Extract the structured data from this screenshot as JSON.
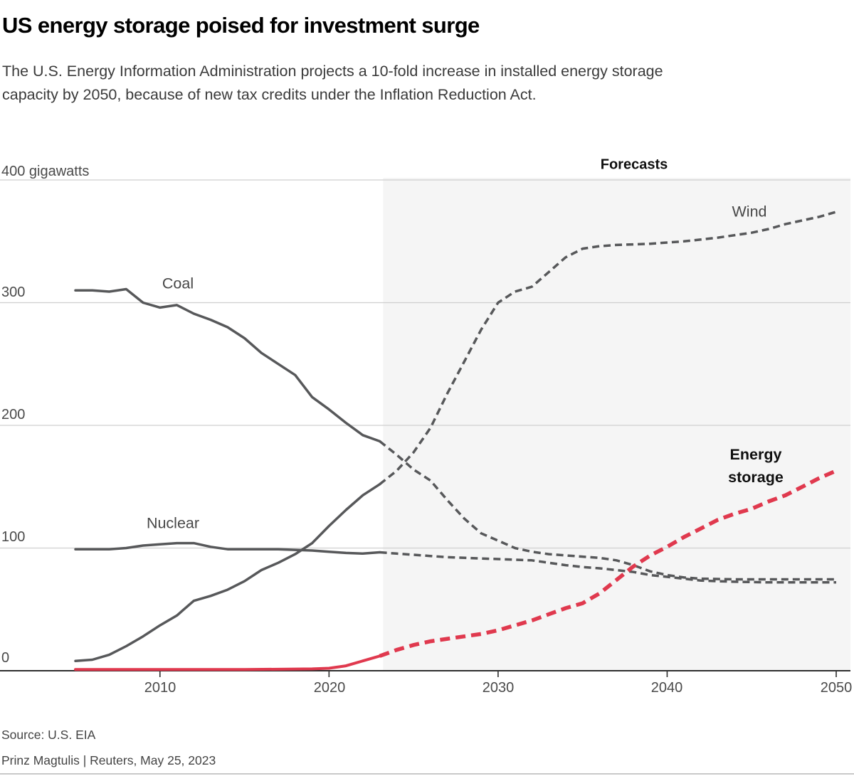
{
  "header": {
    "title": "US energy storage poised for investment surge",
    "subtitle": "The U.S. Energy Information Administration projects a 10-fold increase in installed energy storage\ncapacity by 2050, because of new tax credits under the Inflation Reduction Act."
  },
  "axis": {
    "unit_top": "400 gigawatts",
    "y": [
      "300",
      "200",
      "100",
      "0"
    ],
    "x": [
      "2010",
      "2020",
      "2030",
      "2040",
      "2050"
    ]
  },
  "annotations": {
    "forecasts": "Forecasts",
    "coal": "Coal",
    "nuclear": "Nuclear",
    "wind": "Wind",
    "storage": "Energy\nstorage"
  },
  "footer": {
    "source": "Source: U.S. EIA",
    "byline": "Prinz Magtulis |  Reuters, May 25, 2023"
  },
  "colors": {
    "gray_line": "#57585a",
    "red_line": "#e0394e",
    "gridline": "#cfcfcf",
    "axis": "#2e2e2e",
    "forecast_region": "#f5f5f5"
  },
  "chart_data": {
    "type": "line",
    "title": "US energy storage poised for investment surge",
    "ylabel": "gigawatts",
    "ylim": [
      0,
      400
    ],
    "xlim": [
      2005,
      2050
    ],
    "yticks": [
      0,
      100,
      200,
      300,
      400
    ],
    "xticks": [
      2010,
      2020,
      2030,
      2040,
      2050
    ],
    "grid": "horizontal",
    "legend_position": "inline-annotations",
    "forecast_region": {
      "label": "Forecasts",
      "x_start": 2023.2,
      "x_end": 2050.8
    },
    "series": [
      {
        "name": "Coal",
        "segment": "historical",
        "dashed": false,
        "color": "#57585a",
        "width": 3.5,
        "points": [
          [
            2005,
            310
          ],
          [
            2006,
            310
          ],
          [
            2007,
            309
          ],
          [
            2008,
            311
          ],
          [
            2009,
            300
          ],
          [
            2010,
            296
          ],
          [
            2011,
            298
          ],
          [
            2012,
            291
          ],
          [
            2013,
            286
          ],
          [
            2014,
            280
          ],
          [
            2015,
            271
          ],
          [
            2016,
            259
          ],
          [
            2017,
            250
          ],
          [
            2018,
            241
          ],
          [
            2019,
            223
          ],
          [
            2020,
            213
          ],
          [
            2021,
            202
          ],
          [
            2022,
            192
          ],
          [
            2023,
            187
          ]
        ]
      },
      {
        "name": "Coal",
        "segment": "forecast",
        "dashed": true,
        "color": "#57585a",
        "width": 3.5,
        "points": [
          [
            2023,
            187
          ],
          [
            2024,
            176
          ],
          [
            2025,
            164
          ],
          [
            2026,
            155
          ],
          [
            2027,
            139
          ],
          [
            2028,
            124
          ],
          [
            2029,
            112
          ],
          [
            2030,
            106
          ],
          [
            2031,
            100
          ],
          [
            2032,
            97
          ],
          [
            2033,
            95
          ],
          [
            2034,
            94
          ],
          [
            2035,
            93
          ],
          [
            2036,
            92
          ],
          [
            2037,
            90
          ],
          [
            2038,
            86
          ],
          [
            2039,
            81
          ],
          [
            2040,
            78
          ],
          [
            2041,
            76
          ],
          [
            2042,
            75
          ],
          [
            2044,
            74.5
          ],
          [
            2046,
            74.5
          ],
          [
            2048,
            74.5
          ],
          [
            2050,
            74.5
          ]
        ]
      },
      {
        "name": "Nuclear",
        "segment": "historical",
        "dashed": false,
        "color": "#57585a",
        "width": 3.5,
        "points": [
          [
            2005,
            99
          ],
          [
            2006,
            99
          ],
          [
            2007,
            99
          ],
          [
            2008,
            100
          ],
          [
            2009,
            102
          ],
          [
            2010,
            103
          ],
          [
            2011,
            104
          ],
          [
            2012,
            104
          ],
          [
            2013,
            101
          ],
          [
            2014,
            99
          ],
          [
            2015,
            99
          ],
          [
            2016,
            99
          ],
          [
            2017,
            99
          ],
          [
            2018,
            98.5
          ],
          [
            2019,
            98
          ],
          [
            2020,
            97
          ],
          [
            2021,
            96
          ],
          [
            2022,
            95.5
          ],
          [
            2023,
            96.5
          ]
        ]
      },
      {
        "name": "Nuclear",
        "segment": "forecast",
        "dashed": true,
        "color": "#57585a",
        "width": 3.5,
        "points": [
          [
            2023,
            96.5
          ],
          [
            2024,
            95.5
          ],
          [
            2025,
            94.5
          ],
          [
            2026,
            93.5
          ],
          [
            2027,
            92.5
          ],
          [
            2028,
            92
          ],
          [
            2029,
            91.5
          ],
          [
            2030,
            91
          ],
          [
            2031,
            90.5
          ],
          [
            2032,
            90
          ],
          [
            2033,
            88
          ],
          [
            2034,
            86
          ],
          [
            2035,
            84.5
          ],
          [
            2036,
            83.5
          ],
          [
            2037,
            82
          ],
          [
            2038,
            80.5
          ],
          [
            2039,
            78
          ],
          [
            2040,
            76.5
          ],
          [
            2041,
            75
          ],
          [
            2042,
            73.5
          ],
          [
            2043,
            73
          ],
          [
            2044,
            72.5
          ],
          [
            2046,
            72
          ],
          [
            2048,
            72
          ],
          [
            2050,
            72
          ]
        ]
      },
      {
        "name": "Wind",
        "segment": "historical",
        "dashed": false,
        "color": "#57585a",
        "width": 3.5,
        "points": [
          [
            2005,
            8
          ],
          [
            2006,
            9
          ],
          [
            2007,
            13
          ],
          [
            2008,
            20
          ],
          [
            2009,
            28
          ],
          [
            2010,
            37
          ],
          [
            2011,
            45
          ],
          [
            2012,
            57
          ],
          [
            2013,
            61
          ],
          [
            2014,
            66
          ],
          [
            2015,
            73
          ],
          [
            2016,
            82
          ],
          [
            2017,
            88
          ],
          [
            2018,
            95
          ],
          [
            2019,
            104
          ],
          [
            2020,
            118
          ],
          [
            2021,
            131
          ],
          [
            2022,
            143
          ],
          [
            2023,
            152
          ]
        ]
      },
      {
        "name": "Wind",
        "segment": "forecast",
        "dashed": true,
        "color": "#57585a",
        "width": 3.5,
        "points": [
          [
            2023,
            152
          ],
          [
            2024,
            163
          ],
          [
            2025,
            178
          ],
          [
            2026,
            198
          ],
          [
            2027,
            226
          ],
          [
            2028,
            252
          ],
          [
            2029,
            278
          ],
          [
            2030,
            300
          ],
          [
            2031,
            309
          ],
          [
            2032,
            313
          ],
          [
            2033,
            325
          ],
          [
            2034,
            337
          ],
          [
            2035,
            344
          ],
          [
            2036,
            346
          ],
          [
            2037,
            347
          ],
          [
            2038,
            347.5
          ],
          [
            2039,
            348
          ],
          [
            2040,
            349
          ],
          [
            2041,
            350
          ],
          [
            2042,
            351.5
          ],
          [
            2043,
            353
          ],
          [
            2044,
            355
          ],
          [
            2045,
            357
          ],
          [
            2046,
            360
          ],
          [
            2047,
            364
          ],
          [
            2048,
            367
          ],
          [
            2049,
            370
          ],
          [
            2050,
            374
          ]
        ]
      },
      {
        "name": "Energy storage",
        "segment": "historical",
        "dashed": false,
        "color": "#e0394e",
        "width": 4,
        "points": [
          [
            2005,
            1
          ],
          [
            2010,
            1
          ],
          [
            2015,
            1
          ],
          [
            2019,
            1.5
          ],
          [
            2020,
            2
          ],
          [
            2021,
            4
          ],
          [
            2022,
            8
          ],
          [
            2023,
            12
          ]
        ]
      },
      {
        "name": "Energy storage",
        "segment": "forecast",
        "dashed": true,
        "color": "#e0394e",
        "width": 5.5,
        "points": [
          [
            2023,
            12
          ],
          [
            2024,
            17
          ],
          [
            2025,
            21
          ],
          [
            2026,
            24
          ],
          [
            2027,
            26
          ],
          [
            2028,
            28
          ],
          [
            2029,
            30
          ],
          [
            2030,
            33
          ],
          [
            2031,
            37
          ],
          [
            2032,
            41
          ],
          [
            2033,
            46
          ],
          [
            2034,
            51
          ],
          [
            2035,
            55
          ],
          [
            2036,
            63
          ],
          [
            2037,
            74
          ],
          [
            2038,
            85
          ],
          [
            2039,
            94
          ],
          [
            2040,
            101
          ],
          [
            2041,
            109
          ],
          [
            2042,
            116
          ],
          [
            2043,
            123
          ],
          [
            2044,
            128
          ],
          [
            2045,
            132
          ],
          [
            2046,
            138
          ],
          [
            2047,
            143
          ],
          [
            2048,
            150
          ],
          [
            2049,
            157
          ],
          [
            2050,
            163
          ]
        ]
      }
    ]
  }
}
